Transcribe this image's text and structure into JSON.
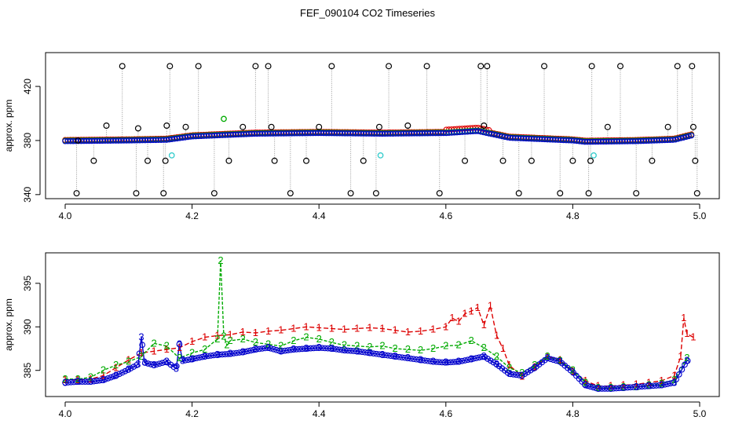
{
  "figure": {
    "title": "FEF_090104  CO2 Timeseries"
  },
  "colors": {
    "raw": "#000000",
    "series1": "#dd0000",
    "series2": "#00aa00",
    "series3": "#0000cc",
    "highlight": "#33cccc",
    "dotted": "#9a9a9a"
  },
  "chart_data": [
    {
      "type": "scatter",
      "title": "",
      "xlabel": "",
      "ylabel": "approx. ppm",
      "xlim": [
        4.0,
        5.0
      ],
      "ylim": [
        337,
        445
      ],
      "xticks": [
        4.0,
        4.2,
        4.4,
        4.6,
        4.8,
        5.0
      ],
      "yticks": [
        340,
        380,
        420
      ],
      "xtick_labels": [
        "4.0",
        "4.2",
        "4.4",
        "4.6",
        "4.8",
        "5.0"
      ],
      "ytick_labels": [
        "340",
        "380",
        "420"
      ],
      "grid": false,
      "baseline": {
        "x": [
          4.0,
          4.1,
          4.16,
          4.2,
          4.3,
          4.4,
          4.5,
          4.6,
          4.65,
          4.7,
          4.75,
          4.8,
          4.82,
          4.9,
          4.96,
          4.99
        ],
        "y": [
          379.5,
          380,
          380.5,
          383,
          385,
          385.5,
          385,
          385.5,
          387,
          382,
          381,
          380,
          379,
          379.5,
          380.5,
          384
        ]
      },
      "raw_points": {
        "x": [
          4.018,
          4.02,
          4.045,
          4.065,
          4.09,
          4.112,
          4.115,
          4.13,
          4.155,
          4.158,
          4.16,
          4.165,
          4.19,
          4.21,
          4.235,
          4.258,
          4.28,
          4.3,
          4.32,
          4.325,
          4.33,
          4.355,
          4.38,
          4.4,
          4.42,
          4.45,
          4.47,
          4.49,
          4.495,
          4.51,
          4.54,
          4.57,
          4.59,
          4.63,
          4.655,
          4.66,
          4.665,
          4.69,
          4.715,
          4.735,
          4.755,
          4.78,
          4.8,
          4.825,
          4.828,
          4.83,
          4.855,
          4.875,
          4.9,
          4.925,
          4.95,
          4.965,
          4.988,
          4.99,
          4.993,
          4.996
        ],
        "y": [
          341,
          380,
          365,
          391,
          435,
          341,
          389,
          365,
          341,
          365,
          391,
          435,
          390,
          435,
          341,
          365,
          390,
          435,
          435,
          390,
          365,
          341,
          365,
          390,
          435,
          341,
          365,
          341,
          390,
          435,
          391,
          435,
          341,
          365,
          435,
          391,
          435,
          365,
          341,
          365,
          435,
          341,
          365,
          341,
          365,
          435,
          390,
          435,
          341,
          365,
          390,
          435,
          435,
          390,
          365,
          341
        ]
      },
      "highlight_points": {
        "x": [
          4.168,
          4.25,
          4.497,
          4.833
        ],
        "y": [
          369,
          396,
          369,
          369
        ],
        "colors": [
          "#33cccc",
          "#00aa00",
          "#33cccc",
          "#33cccc"
        ]
      },
      "series": [
        {
          "name": "",
          "color": "#dd0000"
        },
        {
          "name": "",
          "color": "#00aa00"
        },
        {
          "name": "",
          "color": "#0000cc"
        }
      ]
    },
    {
      "type": "line",
      "title": "",
      "xlabel": "",
      "ylabel": "approx. ppm",
      "xlim": [
        4.0,
        5.0
      ],
      "ylim": [
        382,
        398.5
      ],
      "xticks": [
        4.0,
        4.2,
        4.4,
        4.6,
        4.8,
        5.0
      ],
      "yticks": [
        385,
        390,
        395
      ],
      "xtick_labels": [
        "4.0",
        "4.2",
        "4.4",
        "4.6",
        "4.8",
        "5.0"
      ],
      "ytick_labels": [
        "385",
        "390",
        "395"
      ],
      "grid": false,
      "series": [
        {
          "name": "",
          "marker": "1",
          "color": "#dd0000",
          "x": [
            4.0,
            4.02,
            4.04,
            4.06,
            4.08,
            4.1,
            4.12,
            4.14,
            4.16,
            4.18,
            4.2,
            4.22,
            4.24,
            4.26,
            4.28,
            4.3,
            4.32,
            4.34,
            4.36,
            4.38,
            4.4,
            4.42,
            4.44,
            4.46,
            4.48,
            4.5,
            4.52,
            4.54,
            4.56,
            4.58,
            4.6,
            4.61,
            4.62,
            4.63,
            4.64,
            4.65,
            4.66,
            4.67,
            4.68,
            4.69,
            4.7,
            4.72,
            4.74,
            4.76,
            4.78,
            4.8,
            4.82,
            4.84,
            4.86,
            4.88,
            4.9,
            4.92,
            4.94,
            4.96,
            4.97,
            4.975,
            4.98,
            4.99
          ],
          "y": [
            383.9,
            383.9,
            384.0,
            384.4,
            385.3,
            386.2,
            387.0,
            387.2,
            387.4,
            387.6,
            388.3,
            388.8,
            389.0,
            389.1,
            389.4,
            389.3,
            389.5,
            389.6,
            389.8,
            390.0,
            389.9,
            389.8,
            389.7,
            389.8,
            389.9,
            389.8,
            389.6,
            389.4,
            389.5,
            389.7,
            390.0,
            391.0,
            390.6,
            391.5,
            391.8,
            392.2,
            390.2,
            392.4,
            389.0,
            387.5,
            385.6,
            384.3,
            385.4,
            386.6,
            386.2,
            384.9,
            383.8,
            383.2,
            383.2,
            383.3,
            383.4,
            383.6,
            383.8,
            384.4,
            386.6,
            391.0,
            389.2,
            388.8
          ]
        },
        {
          "name": "",
          "marker": "2",
          "color": "#00aa00",
          "x": [
            4.0,
            4.02,
            4.04,
            4.06,
            4.08,
            4.1,
            4.12,
            4.14,
            4.16,
            4.18,
            4.2,
            4.22,
            4.24,
            4.245,
            4.25,
            4.255,
            4.26,
            4.28,
            4.3,
            4.32,
            4.34,
            4.36,
            4.38,
            4.4,
            4.42,
            4.44,
            4.46,
            4.48,
            4.5,
            4.52,
            4.54,
            4.56,
            4.58,
            4.6,
            4.62,
            4.64,
            4.66,
            4.68,
            4.7,
            4.72,
            4.74,
            4.76,
            4.78,
            4.8,
            4.82,
            4.84,
            4.86,
            4.88,
            4.9,
            4.92,
            4.94,
            4.96,
            4.98
          ],
          "y": [
            384.0,
            384.0,
            384.2,
            385.0,
            385.6,
            386.0,
            386.6,
            388.1,
            387.8,
            386.4,
            387.0,
            387.4,
            388.6,
            397.6,
            388.9,
            387.9,
            388.4,
            388.6,
            388.2,
            388.0,
            387.8,
            388.4,
            388.8,
            388.6,
            388.2,
            387.9,
            387.8,
            387.7,
            387.8,
            387.5,
            387.4,
            387.3,
            387.5,
            387.8,
            387.9,
            388.4,
            387.6,
            386.6,
            385.3,
            384.7,
            385.6,
            386.6,
            386.1,
            385.0,
            383.6,
            383.0,
            383.0,
            383.1,
            383.1,
            383.3,
            383.5,
            383.9,
            386.4
          ]
        },
        {
          "name": "",
          "marker": "3",
          "color": "#0000cc",
          "x": [
            4.0,
            4.02,
            4.04,
            4.06,
            4.08,
            4.1,
            4.115,
            4.12,
            4.125,
            4.14,
            4.16,
            4.175,
            4.18,
            4.185,
            4.2,
            4.22,
            4.24,
            4.26,
            4.28,
            4.3,
            4.32,
            4.34,
            4.36,
            4.38,
            4.4,
            4.42,
            4.44,
            4.46,
            4.48,
            4.5,
            4.52,
            4.54,
            4.56,
            4.58,
            4.6,
            4.62,
            4.64,
            4.66,
            4.68,
            4.7,
            4.72,
            4.74,
            4.76,
            4.78,
            4.8,
            4.82,
            4.84,
            4.86,
            4.88,
            4.9,
            4.92,
            4.94,
            4.96,
            4.98
          ],
          "y": [
            383.6,
            383.7,
            383.7,
            383.9,
            384.4,
            385.1,
            385.7,
            388.8,
            385.9,
            385.6,
            386.0,
            385.2,
            388.0,
            386.1,
            386.3,
            386.6,
            386.8,
            386.9,
            387.1,
            387.4,
            387.6,
            387.2,
            387.4,
            387.5,
            387.6,
            387.5,
            387.3,
            387.2,
            387.0,
            386.8,
            386.6,
            386.4,
            386.2,
            386.0,
            385.9,
            386.0,
            386.3,
            386.6,
            385.7,
            384.6,
            384.4,
            385.3,
            386.4,
            386.0,
            384.8,
            383.3,
            382.9,
            382.9,
            383.0,
            383.1,
            383.2,
            383.3,
            383.6,
            386.1
          ]
        }
      ]
    }
  ]
}
